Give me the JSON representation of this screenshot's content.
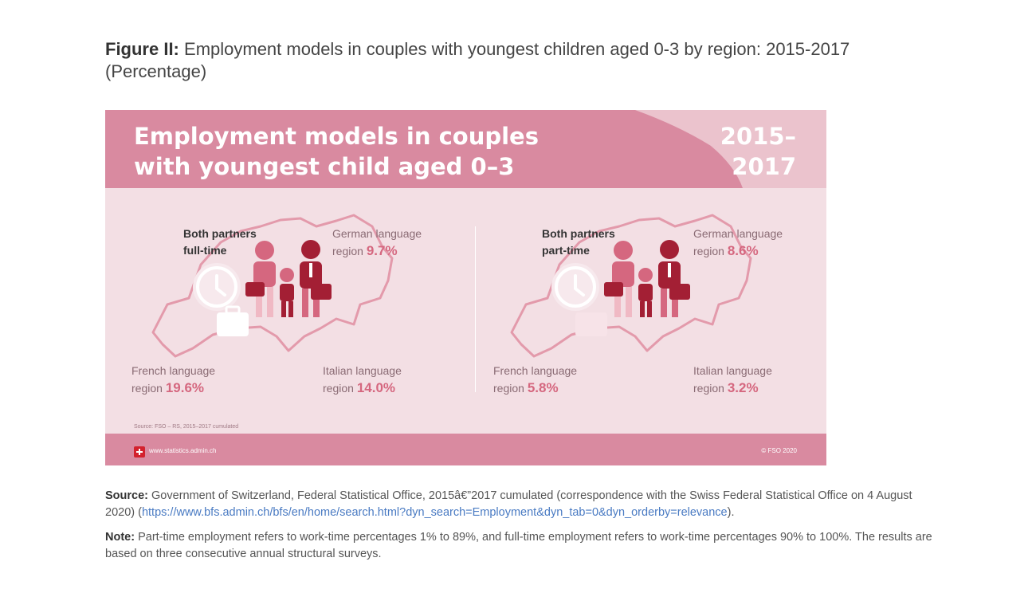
{
  "figure": {
    "label": "Figure II:",
    "title": "Employment models in couples with youngest children aged 0-3 by region: 2015-2017",
    "unit": "(Percentage)"
  },
  "infographic": {
    "title_line1": "Employment models in couples",
    "title_line2": "with youngest child aged 0–3",
    "years_line1": "2015–",
    "years_line2": "2017",
    "source": "Source: FSO – RS, 2015–2017 cumulated",
    "url": "www.statistics.admin.ch",
    "copyright": "© FSO 2020",
    "panels": [
      {
        "model_line1": "Both partners",
        "model_line2": "full-time",
        "german_label_line1": "German language",
        "german_label_line2": "region",
        "german_value": "9.7%",
        "french_label_line1": "French language",
        "french_label_line2": "region",
        "french_value": "19.6%",
        "italian_label_line1": "Italian language",
        "italian_label_line2": "region",
        "italian_value": "14.0%"
      },
      {
        "model_line1": "Both partners",
        "model_line2": "part-time",
        "german_label_line1": "German language",
        "german_label_line2": "region",
        "german_value": "8.6%",
        "french_label_line1": "French language",
        "french_label_line2": "region",
        "french_value": "5.8%",
        "italian_label_line1": "Italian language",
        "italian_label_line2": "region",
        "italian_value": "3.2%"
      }
    ],
    "colors": {
      "header": "#d98aa0",
      "background": "#f3dfe4",
      "accent": "#d5677f",
      "dark_red": "#a31f34",
      "map_line": "#e39aab"
    }
  },
  "source_note": {
    "label": "Source:",
    "text": "Government of Switzerland, Federal Statistical Office, 2015â€”2017 cumulated (correspondence with the Swiss Federal Statistical Office on 4 August 2020) (",
    "link": "https://www.bfs.admin.ch/bfs/en/home/search.html?dyn_search=Employment&dyn_tab=0&dyn_orderby=relevance",
    "tail": ")."
  },
  "note": {
    "label": "Note:",
    "text": "Part-time employment refers to work-time percentages 1% to 89%, and full-time employment refers to work-time percentages 90% to 100%. The results are based on three consecutive annual structural surveys."
  }
}
